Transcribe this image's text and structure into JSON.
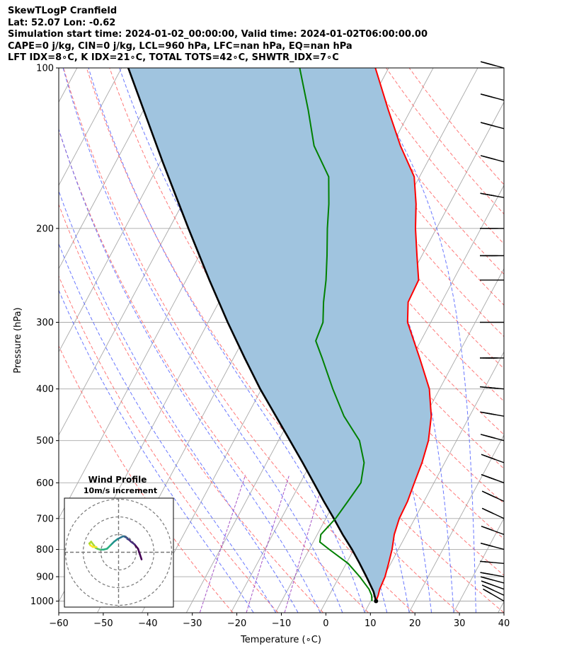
{
  "header": {
    "line1": "SkewTLogP Cranfield",
    "line2": "Lat: 52.07   Lon: -0.62",
    "line3": "Simulation start time: 2024-01-02_00:00:00, Valid time: 2024-01-02T06:00:00.00",
    "line4": "CAPE=0 j/kg, CIN=0 j/kg, LCL=960 hPa, LFC=nan hPa, EQ=nan hPa",
    "line5": "LFT IDX=8∘C, K IDX=21∘C, TOTAL TOTS=42∘C, SHWTR_IDX=7∘C"
  },
  "chart_data": {
    "type": "line",
    "xlabel": "Temperature (∘C)",
    "ylabel": "Pressure (hPa)",
    "xlim": [
      -60,
      40
    ],
    "ylim": [
      1050,
      100
    ],
    "y_scale": "log",
    "x_ticks": [
      -60,
      -50,
      -40,
      -30,
      -20,
      -10,
      0,
      10,
      20,
      30,
      40
    ],
    "y_ticks": [
      100,
      200,
      300,
      400,
      500,
      600,
      700,
      800,
      900,
      1000
    ],
    "grid": true,
    "colors": {
      "temperature": "#ff0000",
      "dewpoint": "#008000",
      "parcel": "#000000",
      "shade": "#a0c4df",
      "dry_adiabat": "#ff6060",
      "moist_adiabat": "#5060ff",
      "mixing_ratio": "#9a40c0",
      "isotherm": "#a8a8a8"
    },
    "series": [
      {
        "key": "temperature",
        "points": [
          [
            1000,
            11.2
          ],
          [
            975,
            11.0
          ],
          [
            950,
            10.6
          ],
          [
            900,
            10.3
          ],
          [
            850,
            9.5
          ],
          [
            800,
            8.6
          ],
          [
            750,
            7.3
          ],
          [
            700,
            6.5
          ],
          [
            650,
            6.3
          ],
          [
            600,
            5.6
          ],
          [
            550,
            4.9
          ],
          [
            500,
            3.7
          ],
          [
            450,
            1.4
          ],
          [
            400,
            -2.3
          ],
          [
            350,
            -8.2
          ],
          [
            300,
            -15.2
          ],
          [
            275,
            -17.5
          ],
          [
            250,
            -17.8
          ],
          [
            225,
            -21.1
          ],
          [
            200,
            -24.7
          ],
          [
            180,
            -27.5
          ],
          [
            160,
            -31.2
          ],
          [
            140,
            -38.0
          ],
          [
            120,
            -45.0
          ],
          [
            100,
            -53.0
          ]
        ]
      },
      {
        "key": "dewpoint",
        "points": [
          [
            1000,
            10.3
          ],
          [
            975,
            9.5
          ],
          [
            950,
            8.2
          ],
          [
            900,
            4.6
          ],
          [
            850,
            0.4
          ],
          [
            800,
            -5.5
          ],
          [
            775,
            -8.5
          ],
          [
            750,
            -9.2
          ],
          [
            700,
            -7.8
          ],
          [
            650,
            -7.1
          ],
          [
            600,
            -6.4
          ],
          [
            550,
            -8.1
          ],
          [
            500,
            -11.8
          ],
          [
            450,
            -18.2
          ],
          [
            400,
            -24.0
          ],
          [
            350,
            -30.1
          ],
          [
            325,
            -33.6
          ],
          [
            300,
            -34.2
          ],
          [
            275,
            -36.5
          ],
          [
            250,
            -38.6
          ],
          [
            225,
            -41.3
          ],
          [
            200,
            -44.5
          ],
          [
            180,
            -47.1
          ],
          [
            160,
            -50.4
          ],
          [
            140,
            -57.4
          ],
          [
            120,
            -63.0
          ],
          [
            100,
            -70.0
          ]
        ]
      },
      {
        "key": "parcel",
        "points": [
          [
            1000,
            11.2
          ],
          [
            960,
            9.5
          ],
          [
            900,
            6.1
          ],
          [
            850,
            3.0
          ],
          [
            800,
            -0.4
          ],
          [
            750,
            -4.3
          ],
          [
            700,
            -8.2
          ],
          [
            650,
            -12.5
          ],
          [
            600,
            -17.0
          ],
          [
            550,
            -21.9
          ],
          [
            500,
            -27.4
          ],
          [
            450,
            -33.5
          ],
          [
            400,
            -40.3
          ],
          [
            350,
            -47.5
          ],
          [
            300,
            -55.6
          ],
          [
            250,
            -64.8
          ],
          [
            200,
            -75.7
          ],
          [
            150,
            -89.5
          ],
          [
            100,
            -108.5
          ]
        ]
      }
    ],
    "wind_barbs": [
      {
        "p": 1000,
        "speed_kt": 15,
        "dir": 240
      },
      {
        "p": 975,
        "speed_kt": 20,
        "dir": 245
      },
      {
        "p": 950,
        "speed_kt": 20,
        "dir": 250
      },
      {
        "p": 925,
        "speed_kt": 20,
        "dir": 255
      },
      {
        "p": 900,
        "speed_kt": 20,
        "dir": 260
      },
      {
        "p": 850,
        "speed_kt": 20,
        "dir": 265
      },
      {
        "p": 800,
        "speed_kt": 25,
        "dir": 255
      },
      {
        "p": 750,
        "speed_kt": 25,
        "dir": 250
      },
      {
        "p": 700,
        "speed_kt": 25,
        "dir": 245
      },
      {
        "p": 650,
        "speed_kt": 35,
        "dir": 245
      },
      {
        "p": 600,
        "speed_kt": 35,
        "dir": 250
      },
      {
        "p": 550,
        "speed_kt": 35,
        "dir": 250
      },
      {
        "p": 500,
        "speed_kt": 35,
        "dir": 255
      },
      {
        "p": 450,
        "speed_kt": 35,
        "dir": 260
      },
      {
        "p": 400,
        "speed_kt": 40,
        "dir": 265
      },
      {
        "p": 350,
        "speed_kt": 45,
        "dir": 270
      },
      {
        "p": 300,
        "speed_kt": 50,
        "dir": 270
      },
      {
        "p": 250,
        "speed_kt": 50,
        "dir": 270
      },
      {
        "p": 225,
        "speed_kt": 45,
        "dir": 270
      },
      {
        "p": 200,
        "speed_kt": 45,
        "dir": 270
      },
      {
        "p": 175,
        "speed_kt": 35,
        "dir": 260
      },
      {
        "p": 150,
        "speed_kt": 30,
        "dir": 255
      },
      {
        "p": 130,
        "speed_kt": 30,
        "dir": 255
      },
      {
        "p": 115,
        "speed_kt": 30,
        "dir": 255
      },
      {
        "p": 100,
        "speed_kt": 30,
        "dir": 255
      }
    ],
    "inset": {
      "title": "Wind Profile",
      "subtitle": "10m/s increment",
      "hodograph": {
        "u": [
          13,
          12,
          11,
          9,
          7,
          6,
          5,
          5,
          4,
          3,
          2.5,
          1.5,
          -0.5,
          -2.5,
          -4.5,
          -6.5,
          -8.5,
          -10.5,
          -12,
          -13,
          -14,
          -15.5,
          -16.5,
          -16,
          -14.5,
          -12.5
        ],
        "v": [
          -4,
          -1,
          2,
          4.5,
          6,
          7,
          7.5,
          8,
          8.5,
          9,
          9,
          8.5,
          7.5,
          6,
          4,
          2,
          1.5,
          1.5,
          2,
          2.5,
          4,
          6,
          5,
          4,
          3,
          3
        ]
      }
    }
  }
}
